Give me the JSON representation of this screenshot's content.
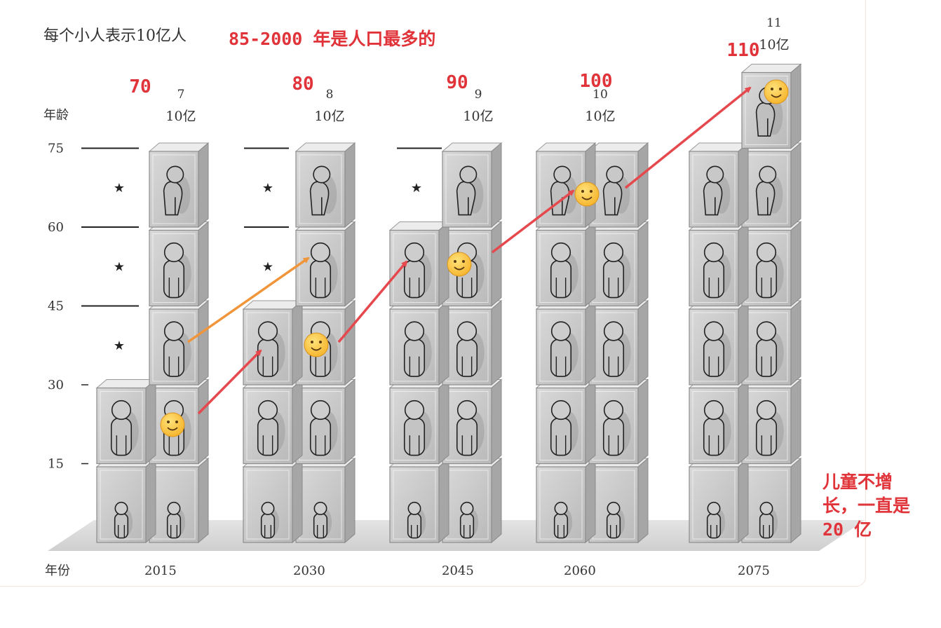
{
  "chart_data": {
    "type": "bar",
    "title": "每个小人表示10亿人",
    "xlabel": "年份",
    "ylabel": "年龄",
    "categories": [
      "2015",
      "2030",
      "2045",
      "2060",
      "2075"
    ],
    "age_ticks": [
      "15",
      "30",
      "45",
      "60",
      "75"
    ],
    "age_bands": [
      "0-15",
      "15-30",
      "30-45",
      "45-60",
      "60-75",
      "75+"
    ],
    "unit_label": "10亿",
    "totals": [
      7,
      8,
      9,
      10,
      11
    ],
    "total_labels": [
      "7",
      "8",
      "9",
      "10",
      "11"
    ],
    "series": [
      {
        "name": "0-15",
        "values": [
          2,
          2,
          2,
          2,
          2
        ]
      },
      {
        "name": "15-30",
        "values": [
          2,
          2,
          2,
          2,
          2
        ]
      },
      {
        "name": "30-45",
        "values": [
          1,
          2,
          2,
          2,
          2
        ]
      },
      {
        "name": "45-60",
        "values": [
          1,
          1,
          2,
          2,
          2
        ]
      },
      {
        "name": "60-75",
        "values": [
          1,
          1,
          1,
          2,
          2
        ]
      },
      {
        "name": "75+",
        "values": [
          0,
          0,
          0,
          0,
          1
        ]
      }
    ],
    "star_marker": "★",
    "ylim": [
      0,
      90
    ]
  },
  "annotations": {
    "headline": "85-2000 年是人口最多的",
    "age_notes": [
      "70",
      "80",
      "90",
      "100",
      "110"
    ],
    "children_note": [
      "儿童不增",
      "长，一直是",
      "20 亿"
    ],
    "annotation_color": "#e0343a",
    "arrow_color_red": "#e5484d",
    "arrow_color_orange": "#f0953a",
    "face_icon": "smiley-face-icon"
  }
}
